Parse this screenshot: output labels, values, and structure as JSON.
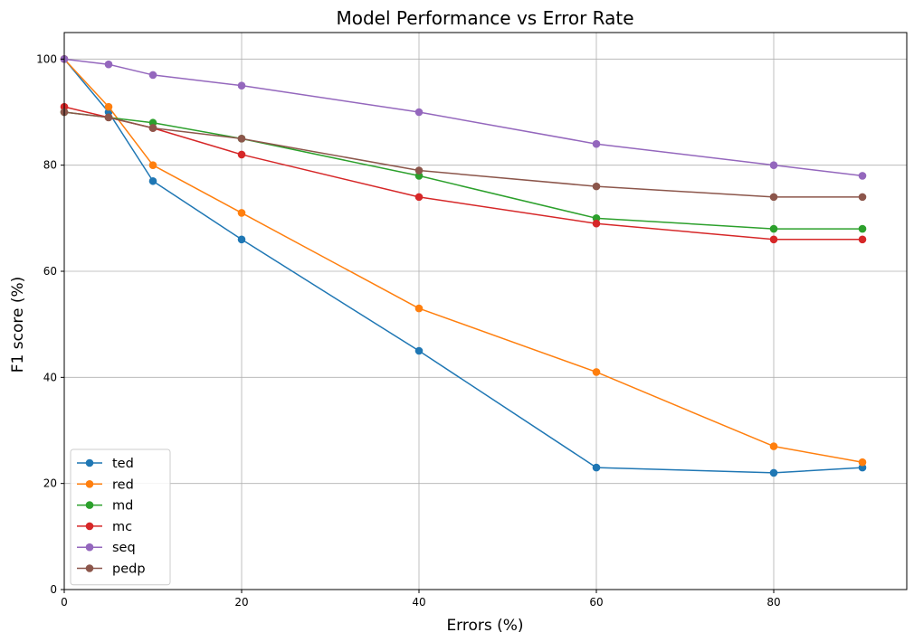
{
  "chart_data": {
    "type": "line",
    "title": "Model Performance vs Error Rate",
    "xlabel": "Errors (%)",
    "ylabel": "F1 score (%)",
    "xlim": [
      0,
      95
    ],
    "ylim": [
      0,
      105
    ],
    "xticks": [
      0,
      20,
      40,
      60,
      80
    ],
    "yticks": [
      0,
      20,
      40,
      60,
      80,
      100
    ],
    "grid": true,
    "legend_position": "lower-left",
    "x": [
      0,
      5,
      10,
      20,
      40,
      60,
      80,
      90
    ],
    "series": [
      {
        "name": "ted",
        "color": "#1f77b4",
        "values": [
          100,
          90,
          77,
          66,
          45,
          23,
          22,
          23
        ]
      },
      {
        "name": "red",
        "color": "#ff7f0e",
        "values": [
          100,
          91,
          80,
          71,
          53,
          41,
          27,
          24
        ]
      },
      {
        "name": "md",
        "color": "#2ca02c",
        "values": [
          90,
          89,
          88,
          85,
          78,
          70,
          68,
          68
        ]
      },
      {
        "name": "mc",
        "color": "#d62728",
        "values": [
          91,
          89,
          87,
          82,
          74,
          69,
          66,
          66
        ]
      },
      {
        "name": "seq",
        "color": "#9467bd",
        "values": [
          100,
          99,
          97,
          95,
          90,
          84,
          80,
          78
        ]
      },
      {
        "name": "pedp",
        "color": "#8c564b",
        "values": [
          90,
          89,
          87,
          85,
          79,
          76,
          74,
          74
        ]
      }
    ]
  }
}
